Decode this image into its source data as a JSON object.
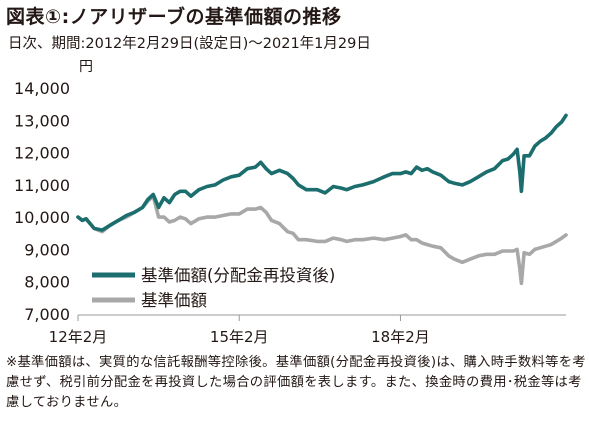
{
  "title": "図表①:ノアリザーブの基準価額の推移",
  "subtitle": "日次、期間:2012年2月29日(設定日)～2021年1月29日",
  "note": "※基準価額は、実質的な信託報酬等控除後。基準価額(分配金再投資後)は、購入時手数料等を考慮せず、税引前分配金を再投資した場合の評価額を表します。また、換金時の費用･税金等は考慮しておりません。",
  "colors": {
    "reinvested": "#1c6e6e",
    "nav": "#a8a8a8",
    "text": "#231815",
    "axis": "#9a9a9a"
  },
  "chart_data": {
    "type": "line",
    "unit": "円",
    "ylim": [
      7000,
      14000
    ],
    "yticks": [
      "7,000",
      "8,000",
      "9,000",
      "10,000",
      "11,000",
      "12,000",
      "13,000",
      "14,000"
    ],
    "xlim": [
      2012.0,
      2021.08
    ],
    "xticks": [
      {
        "x": 2012.0,
        "label": "12年2月"
      },
      {
        "x": 2015.0,
        "label": "15年2月"
      },
      {
        "x": 2018.0,
        "label": "18年2月"
      }
    ],
    "legend_position": "bottom-left",
    "series": [
      {
        "name": "基準価額(分配金再投資後)",
        "color": "#1c6e6e",
        "points": [
          [
            2012.0,
            10000
          ],
          [
            2012.08,
            9900
          ],
          [
            2012.15,
            9950
          ],
          [
            2012.3,
            9650
          ],
          [
            2012.45,
            9600
          ],
          [
            2012.6,
            9750
          ],
          [
            2012.75,
            9900
          ],
          [
            2012.9,
            10050
          ],
          [
            2013.05,
            10150
          ],
          [
            2013.2,
            10300
          ],
          [
            2013.3,
            10550
          ],
          [
            2013.4,
            10700
          ],
          [
            2013.5,
            10300
          ],
          [
            2013.6,
            10600
          ],
          [
            2013.7,
            10450
          ],
          [
            2013.8,
            10700
          ],
          [
            2013.9,
            10800
          ],
          [
            2014.0,
            10800
          ],
          [
            2014.1,
            10650
          ],
          [
            2014.25,
            10850
          ],
          [
            2014.4,
            10950
          ],
          [
            2014.55,
            11000
          ],
          [
            2014.7,
            11150
          ],
          [
            2014.85,
            11250
          ],
          [
            2015.0,
            11300
          ],
          [
            2015.15,
            11500
          ],
          [
            2015.3,
            11550
          ],
          [
            2015.4,
            11700
          ],
          [
            2015.5,
            11500
          ],
          [
            2015.6,
            11350
          ],
          [
            2015.75,
            11450
          ],
          [
            2015.9,
            11350
          ],
          [
            2016.0,
            11200
          ],
          [
            2016.1,
            11000
          ],
          [
            2016.25,
            10850
          ],
          [
            2016.45,
            10850
          ],
          [
            2016.6,
            10750
          ],
          [
            2016.75,
            10950
          ],
          [
            2016.9,
            10900
          ],
          [
            2017.0,
            10850
          ],
          [
            2017.15,
            10950
          ],
          [
            2017.3,
            11000
          ],
          [
            2017.5,
            11100
          ],
          [
            2017.7,
            11250
          ],
          [
            2017.85,
            11350
          ],
          [
            2018.0,
            11350
          ],
          [
            2018.1,
            11400
          ],
          [
            2018.2,
            11350
          ],
          [
            2018.3,
            11550
          ],
          [
            2018.4,
            11450
          ],
          [
            2018.5,
            11500
          ],
          [
            2018.6,
            11400
          ],
          [
            2018.75,
            11300
          ],
          [
            2018.9,
            11100
          ],
          [
            2019.0,
            11050
          ],
          [
            2019.15,
            11000
          ],
          [
            2019.3,
            11100
          ],
          [
            2019.45,
            11250
          ],
          [
            2019.6,
            11400
          ],
          [
            2019.75,
            11500
          ],
          [
            2019.9,
            11750
          ],
          [
            2020.0,
            11800
          ],
          [
            2020.1,
            11950
          ],
          [
            2020.17,
            12100
          ],
          [
            2020.22,
            11400
          ],
          [
            2020.25,
            10800
          ],
          [
            2020.3,
            11900
          ],
          [
            2020.4,
            11900
          ],
          [
            2020.5,
            12200
          ],
          [
            2020.6,
            12350
          ],
          [
            2020.7,
            12450
          ],
          [
            2020.8,
            12600
          ],
          [
            2020.9,
            12800
          ],
          [
            2021.0,
            12950
          ],
          [
            2021.08,
            13150
          ]
        ]
      },
      {
        "name": "基準価額",
        "color": "#a8a8a8",
        "points": [
          [
            2012.0,
            10000
          ],
          [
            2012.08,
            9900
          ],
          [
            2012.15,
            9950
          ],
          [
            2012.3,
            9650
          ],
          [
            2012.45,
            9550
          ],
          [
            2012.6,
            9750
          ],
          [
            2012.75,
            9900
          ],
          [
            2012.9,
            10000
          ],
          [
            2013.05,
            10150
          ],
          [
            2013.2,
            10300
          ],
          [
            2013.3,
            10500
          ],
          [
            2013.4,
            10650
          ],
          [
            2013.5,
            10000
          ],
          [
            2013.6,
            10000
          ],
          [
            2013.7,
            9850
          ],
          [
            2013.8,
            9900
          ],
          [
            2013.9,
            10000
          ],
          [
            2014.0,
            9950
          ],
          [
            2014.1,
            9800
          ],
          [
            2014.25,
            9950
          ],
          [
            2014.4,
            10000
          ],
          [
            2014.55,
            10000
          ],
          [
            2014.7,
            10050
          ],
          [
            2014.85,
            10100
          ],
          [
            2015.0,
            10100
          ],
          [
            2015.15,
            10250
          ],
          [
            2015.3,
            10250
          ],
          [
            2015.4,
            10300
          ],
          [
            2015.5,
            10150
          ],
          [
            2015.6,
            9900
          ],
          [
            2015.75,
            9800
          ],
          [
            2015.9,
            9550
          ],
          [
            2016.0,
            9500
          ],
          [
            2016.1,
            9300
          ],
          [
            2016.25,
            9300
          ],
          [
            2016.45,
            9250
          ],
          [
            2016.6,
            9250
          ],
          [
            2016.75,
            9350
          ],
          [
            2016.9,
            9300
          ],
          [
            2017.0,
            9250
          ],
          [
            2017.15,
            9300
          ],
          [
            2017.3,
            9300
          ],
          [
            2017.5,
            9350
          ],
          [
            2017.7,
            9300
          ],
          [
            2017.85,
            9350
          ],
          [
            2018.0,
            9400
          ],
          [
            2018.1,
            9450
          ],
          [
            2018.2,
            9300
          ],
          [
            2018.3,
            9300
          ],
          [
            2018.4,
            9200
          ],
          [
            2018.5,
            9150
          ],
          [
            2018.6,
            9100
          ],
          [
            2018.75,
            9050
          ],
          [
            2018.9,
            8800
          ],
          [
            2019.0,
            8700
          ],
          [
            2019.15,
            8600
          ],
          [
            2019.3,
            8700
          ],
          [
            2019.45,
            8800
          ],
          [
            2019.6,
            8850
          ],
          [
            2019.75,
            8850
          ],
          [
            2019.9,
            8950
          ],
          [
            2020.0,
            8950
          ],
          [
            2020.1,
            8950
          ],
          [
            2020.17,
            9000
          ],
          [
            2020.22,
            8400
          ],
          [
            2020.25,
            7950
          ],
          [
            2020.3,
            8900
          ],
          [
            2020.4,
            8850
          ],
          [
            2020.5,
            9000
          ],
          [
            2020.6,
            9050
          ],
          [
            2020.7,
            9100
          ],
          [
            2020.8,
            9150
          ],
          [
            2020.9,
            9250
          ],
          [
            2021.0,
            9350
          ],
          [
            2021.08,
            9450
          ]
        ]
      }
    ]
  }
}
